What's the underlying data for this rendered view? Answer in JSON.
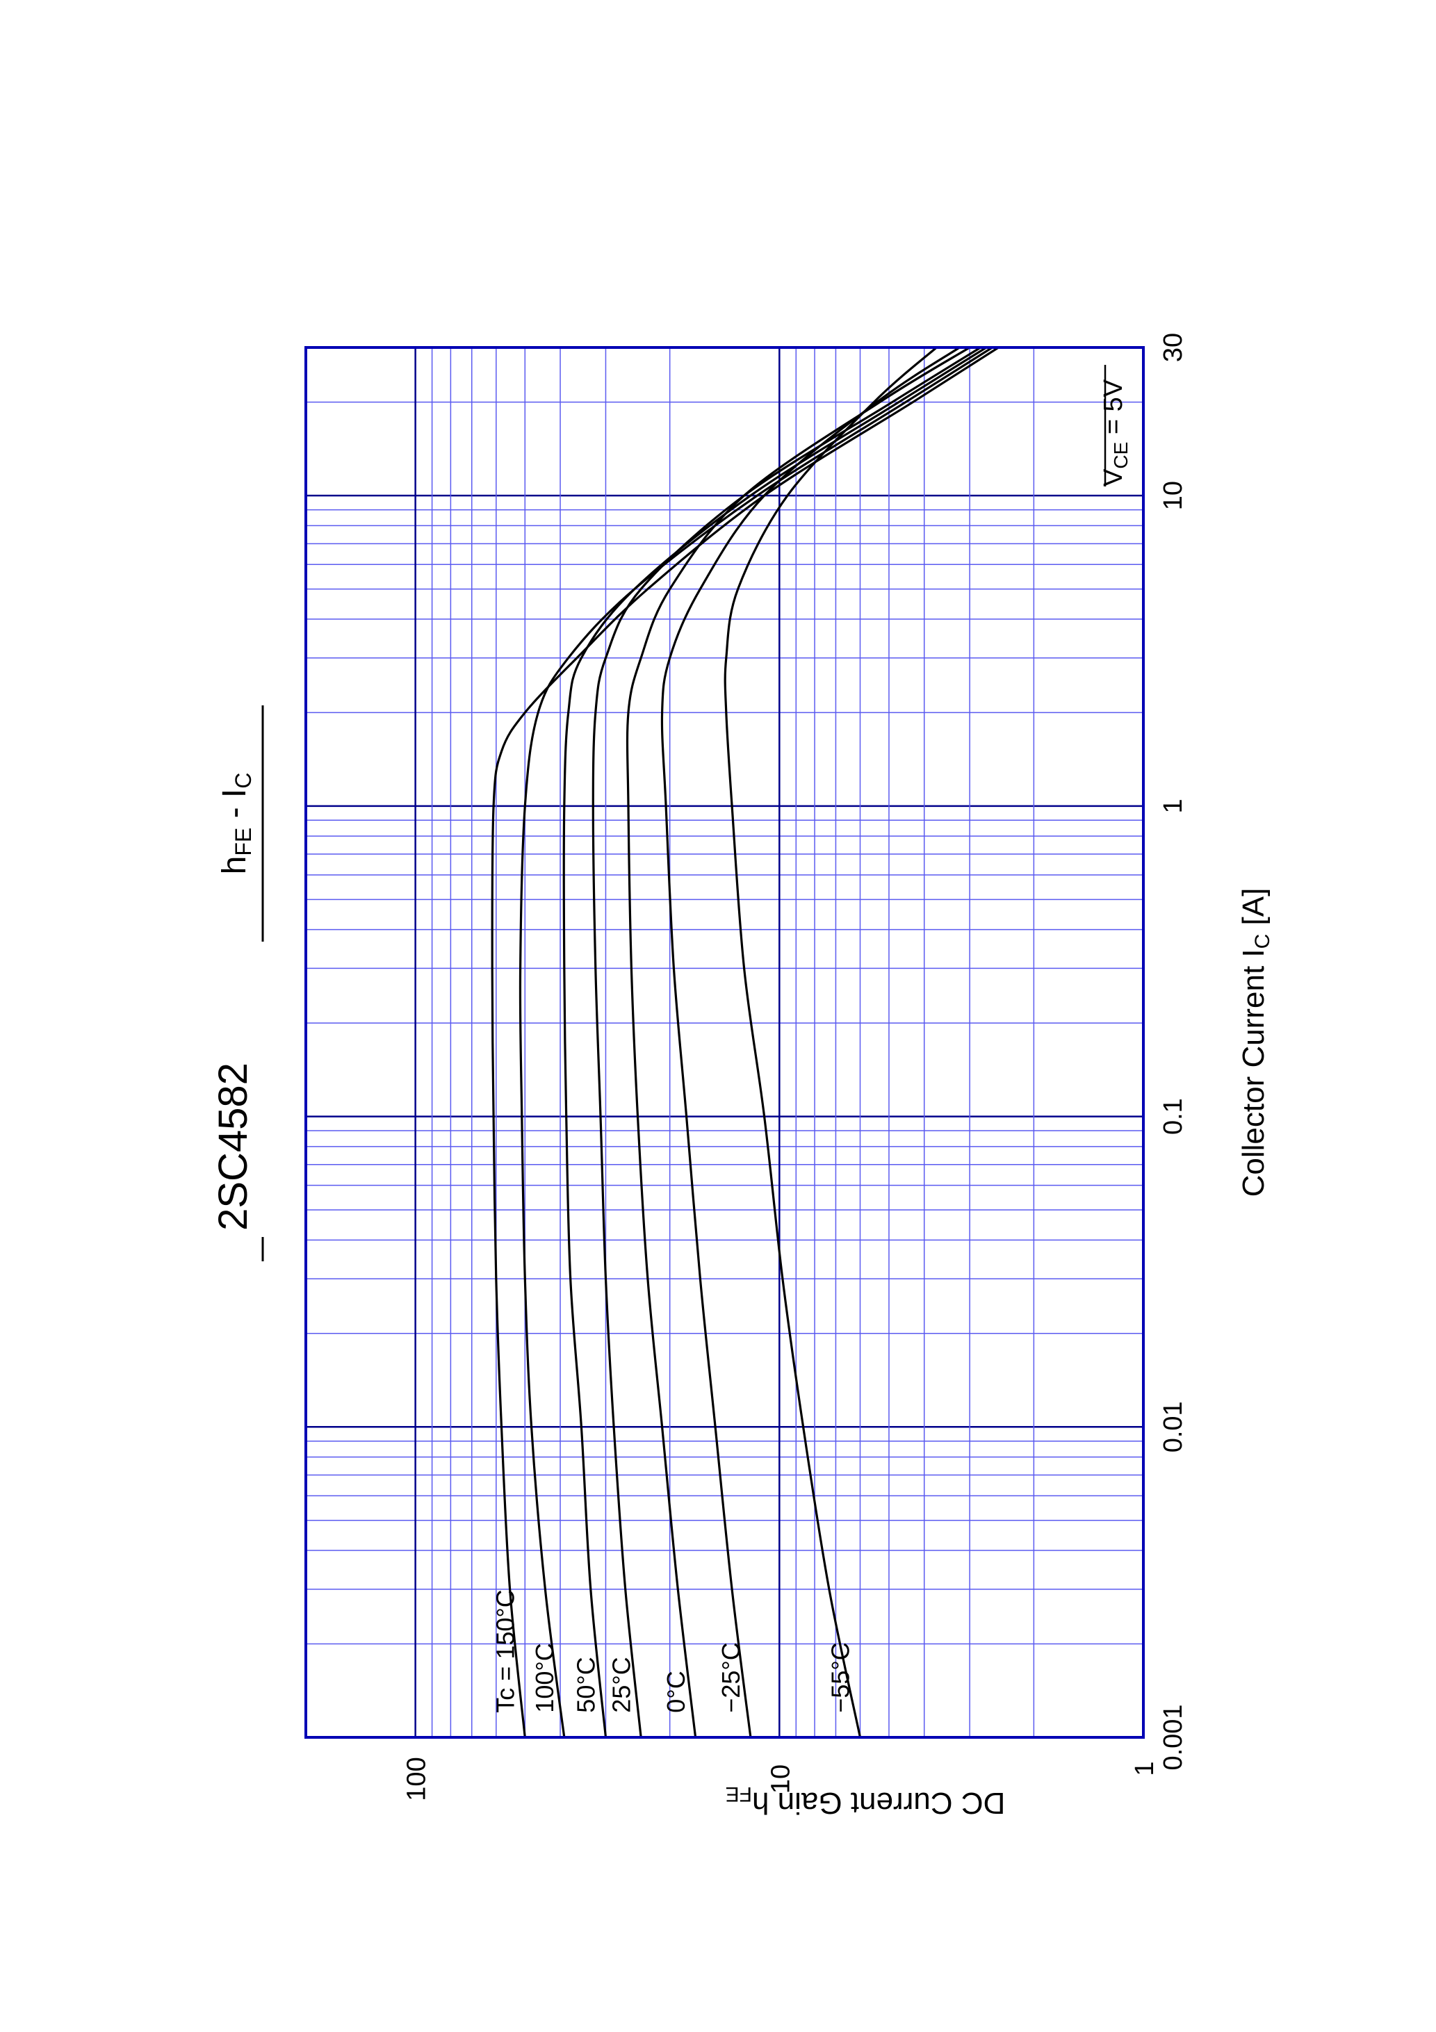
{
  "chart_data": {
    "type": "line",
    "title": "2SC4582",
    "subtitle": "hFE - IC",
    "subtitle_parts": {
      "main1": "h",
      "sub1": "FE",
      "sep": " - I",
      "sub2": "C"
    },
    "xlabel": "Collector Current  IC  [A]",
    "xlabel_parts": {
      "text": "Collector Current  I",
      "sub": "C",
      "unit": " [A]"
    },
    "ylabel": "DC Current Gain  hFE",
    "ylabel_parts": {
      "text": "DC Current Gain  h",
      "sub": "FE"
    },
    "x_scale": "log",
    "y_scale": "log",
    "xlim": [
      0.001,
      30
    ],
    "ylim": [
      1,
      200
    ],
    "x_ticks": [
      {
        "value": 0.001,
        "label": "0.001"
      },
      {
        "value": 0.01,
        "label": "0.01"
      },
      {
        "value": 0.1,
        "label": "0.1"
      },
      {
        "value": 1,
        "label": "1"
      },
      {
        "value": 10,
        "label": "10"
      },
      {
        "value": 30,
        "label": "30"
      }
    ],
    "y_ticks": [
      {
        "value": 1,
        "label": "1"
      },
      {
        "value": 10,
        "label": "10"
      },
      {
        "value": 100,
        "label": "100"
      }
    ],
    "grid": true,
    "orientation": "rotated 90° counter-clockwise on page",
    "condition": "VCE = 5V",
    "condition_parts": {
      "main": "V",
      "sub": "CE",
      "rest": " = 5V"
    },
    "series_labels": [
      "Tc = 150°C",
      "100°C",
      "50°C",
      "25°C",
      "0°C",
      "−25°C",
      "−55°C"
    ],
    "series": [
      {
        "name": "Tc = 150°C",
        "x": [
          0.001,
          0.003,
          0.01,
          0.03,
          0.1,
          0.3,
          1,
          1.5,
          2,
          3,
          5,
          10,
          20,
          30
        ],
        "y": [
          50,
          55,
          58,
          60,
          61,
          61.5,
          61,
          58,
          50,
          36,
          23,
          11,
          4.3,
          2.5
        ]
      },
      {
        "name": "100°C",
        "x": [
          0.001,
          0.003,
          0.01,
          0.03,
          0.1,
          0.3,
          1,
          2,
          3,
          5,
          10,
          20,
          30
        ],
        "y": [
          39,
          44,
          48,
          50,
          51,
          51.5,
          50,
          46,
          38,
          25,
          11.5,
          4.5,
          2.6
        ]
      },
      {
        "name": "50°C",
        "x": [
          0.001,
          0.003,
          0.01,
          0.03,
          0.1,
          0.3,
          1,
          2,
          3,
          5,
          10,
          20,
          30
        ],
        "y": [
          30,
          33,
          35,
          37.5,
          38.5,
          39,
          39,
          38,
          35,
          25,
          12,
          4.7,
          2.7
        ]
      },
      {
        "name": "25°C",
        "x": [
          0.001,
          0.003,
          0.01,
          0.03,
          0.1,
          0.3,
          1,
          2,
          3,
          5,
          10,
          20,
          30
        ],
        "y": [
          24,
          26.5,
          28.5,
          30,
          31,
          32,
          32.5,
          32,
          30,
          24,
          12.5,
          4.9,
          2.8
        ]
      },
      {
        "name": "0°C",
        "x": [
          0.001,
          0.003,
          0.01,
          0.03,
          0.1,
          0.3,
          1,
          2,
          3,
          5,
          10,
          20,
          30
        ],
        "y": [
          17,
          19,
          21,
          23,
          24.5,
          25.5,
          26,
          26,
          24,
          20,
          12.5,
          5.3,
          3.0
        ]
      },
      {
        "name": "−25°C",
        "x": [
          0.001,
          0.003,
          0.01,
          0.03,
          0.1,
          0.3,
          1,
          2,
          3,
          5,
          10,
          20,
          30
        ],
        "y": [
          12,
          13.5,
          15,
          16.5,
          18,
          19.5,
          20.5,
          21,
          20,
          16.5,
          11,
          5.4,
          3.2
        ]
      },
      {
        "name": "−55°C",
        "x": [
          0.001,
          0.003,
          0.01,
          0.03,
          0.1,
          0.3,
          1,
          2,
          3,
          5,
          10,
          20,
          30
        ],
        "y": [
          6,
          7.3,
          8.6,
          9.8,
          11,
          12.5,
          13.5,
          14,
          14,
          13,
          9.5,
          5.5,
          3.7
        ]
      }
    ]
  }
}
